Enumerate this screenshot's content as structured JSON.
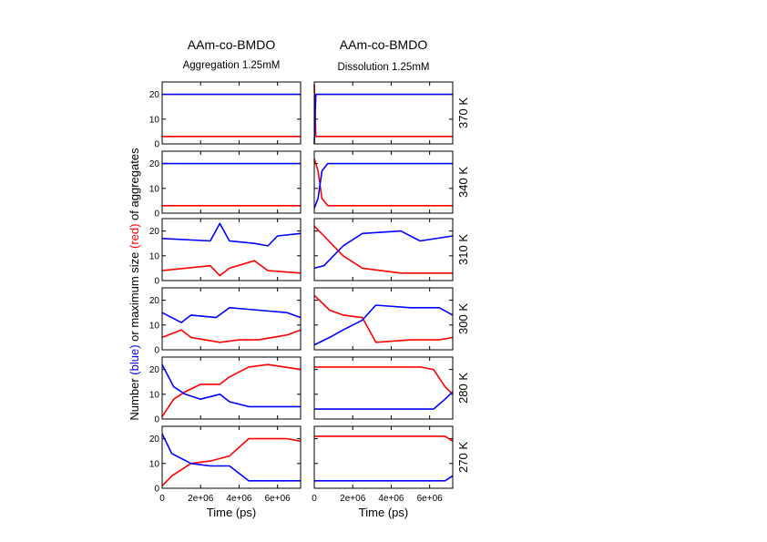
{
  "chart_data": {
    "type": "line",
    "columns": [
      {
        "title": "AAm-co-BMDO",
        "subtitle": "Aggregation 1.25mM"
      },
      {
        "title": "AAm-co-BMDO",
        "subtitle": "Dissolution 1.25mM"
      }
    ],
    "rows": [
      "370 K",
      "340 K",
      "310 K",
      "300 K",
      "280 K",
      "270 K"
    ],
    "xlabel": "Time (ps)",
    "ylabel": {
      "parts": [
        "Number ",
        "(blue)",
        " or maximum size ",
        "(red)",
        " of aggregates"
      ],
      "colors": [
        "#000000",
        "#0000ff",
        "#000000",
        "#ff0000",
        "#000000"
      ]
    },
    "x_ticks": [
      "0",
      "2e+06",
      "4e+06",
      "6e+06"
    ],
    "x_tick_values": [
      0,
      2000000,
      4000000,
      6000000
    ],
    "xlim": [
      0,
      7200000
    ],
    "y_ticks": [
      "0",
      "10",
      "20"
    ],
    "y_tick_values": [
      0,
      10,
      20
    ],
    "ylim": [
      0,
      25
    ],
    "series_colors": {
      "number": "#0000ff",
      "max_size": "#ff0000"
    },
    "panels": [
      {
        "row": "370 K",
        "column": "Aggregation 1.25mM",
        "number": [
          [
            0,
            20
          ],
          [
            7200000,
            20
          ]
        ],
        "max_size": [
          [
            0,
            3
          ],
          [
            7200000,
            3
          ]
        ]
      },
      {
        "row": "370 K",
        "column": "Dissolution 1.25mM",
        "number": [
          [
            0,
            0
          ],
          [
            80000,
            20
          ],
          [
            7200000,
            20
          ]
        ],
        "max_size": [
          [
            0,
            24
          ],
          [
            80000,
            3
          ],
          [
            7200000,
            3
          ]
        ]
      },
      {
        "row": "340 K",
        "column": "Aggregation 1.25mM",
        "number": [
          [
            0,
            20
          ],
          [
            7200000,
            20
          ]
        ],
        "max_size": [
          [
            0,
            3
          ],
          [
            7200000,
            3
          ]
        ]
      },
      {
        "row": "340 K",
        "column": "Dissolution 1.25mM",
        "number": [
          [
            0,
            2
          ],
          [
            200000,
            6
          ],
          [
            400000,
            17
          ],
          [
            700000,
            20
          ],
          [
            7200000,
            20
          ]
        ],
        "max_size": [
          [
            0,
            22
          ],
          [
            200000,
            17
          ],
          [
            400000,
            6
          ],
          [
            700000,
            3
          ],
          [
            7200000,
            3
          ]
        ]
      },
      {
        "row": "310 K",
        "column": "Aggregation 1.25mM",
        "number": [
          [
            0,
            17
          ],
          [
            2500000,
            16
          ],
          [
            3000000,
            23
          ],
          [
            3500000,
            16
          ],
          [
            4800000,
            15
          ],
          [
            5500000,
            14
          ],
          [
            6000000,
            18
          ],
          [
            7200000,
            19
          ]
        ],
        "max_size": [
          [
            0,
            4
          ],
          [
            2500000,
            6
          ],
          [
            3000000,
            2
          ],
          [
            3500000,
            5
          ],
          [
            4800000,
            8
          ],
          [
            5500000,
            4
          ],
          [
            7200000,
            3
          ]
        ]
      },
      {
        "row": "310 K",
        "column": "Dissolution 1.25mM",
        "number": [
          [
            0,
            5
          ],
          [
            500000,
            6
          ],
          [
            1000000,
            10
          ],
          [
            1500000,
            14
          ],
          [
            2500000,
            19
          ],
          [
            4500000,
            20
          ],
          [
            5500000,
            16
          ],
          [
            7200000,
            18
          ]
        ],
        "max_size": [
          [
            0,
            22
          ],
          [
            500000,
            18
          ],
          [
            1000000,
            14
          ],
          [
            1500000,
            10
          ],
          [
            2500000,
            5
          ],
          [
            4500000,
            3
          ],
          [
            7200000,
            3
          ]
        ]
      },
      {
        "row": "300 K",
        "column": "Aggregation 1.25mM",
        "number": [
          [
            0,
            15
          ],
          [
            1000000,
            11
          ],
          [
            1500000,
            14
          ],
          [
            2800000,
            13
          ],
          [
            3500000,
            17
          ],
          [
            5000000,
            16
          ],
          [
            6500000,
            15
          ],
          [
            7200000,
            13
          ]
        ],
        "max_size": [
          [
            0,
            5
          ],
          [
            1000000,
            8
          ],
          [
            1500000,
            5
          ],
          [
            3000000,
            3
          ],
          [
            4000000,
            4
          ],
          [
            5000000,
            4
          ],
          [
            6500000,
            6
          ],
          [
            7200000,
            8
          ]
        ]
      },
      {
        "row": "300 K",
        "column": "Dissolution 1.25mM",
        "number": [
          [
            0,
            2
          ],
          [
            800000,
            5
          ],
          [
            1500000,
            8
          ],
          [
            2500000,
            12
          ],
          [
            3200000,
            18
          ],
          [
            5000000,
            17
          ],
          [
            6500000,
            17
          ],
          [
            7200000,
            14
          ]
        ],
        "max_size": [
          [
            0,
            22
          ],
          [
            800000,
            16
          ],
          [
            1500000,
            14
          ],
          [
            2500000,
            13
          ],
          [
            3200000,
            3
          ],
          [
            5000000,
            4
          ],
          [
            6500000,
            4
          ],
          [
            7200000,
            5
          ]
        ]
      },
      {
        "row": "280 K",
        "column": "Aggregation 1.25mM",
        "number": [
          [
            0,
            22
          ],
          [
            600000,
            13
          ],
          [
            1200000,
            10
          ],
          [
            2000000,
            8
          ],
          [
            3000000,
            10
          ],
          [
            3500000,
            7
          ],
          [
            4500000,
            5
          ],
          [
            7200000,
            5
          ]
        ],
        "max_size": [
          [
            0,
            1
          ],
          [
            600000,
            8
          ],
          [
            1200000,
            11
          ],
          [
            2000000,
            14
          ],
          [
            3000000,
            14
          ],
          [
            3500000,
            17
          ],
          [
            4500000,
            21
          ],
          [
            5500000,
            22
          ],
          [
            7200000,
            20
          ]
        ]
      },
      {
        "row": "280 K",
        "column": "Dissolution 1.25mM",
        "number": [
          [
            0,
            4
          ],
          [
            5500000,
            4
          ],
          [
            6200000,
            4
          ],
          [
            6800000,
            8
          ],
          [
            7200000,
            11
          ]
        ],
        "max_size": [
          [
            0,
            21
          ],
          [
            5500000,
            21
          ],
          [
            6200000,
            20
          ],
          [
            6800000,
            13
          ],
          [
            7200000,
            10
          ]
        ]
      },
      {
        "row": "270 K",
        "column": "Aggregation 1.25mM",
        "number": [
          [
            0,
            22
          ],
          [
            500000,
            14
          ],
          [
            1500000,
            10
          ],
          [
            2500000,
            9
          ],
          [
            3500000,
            9
          ],
          [
            4500000,
            3
          ],
          [
            7200000,
            3
          ]
        ],
        "max_size": [
          [
            0,
            1
          ],
          [
            500000,
            5
          ],
          [
            1500000,
            10
          ],
          [
            2500000,
            11
          ],
          [
            3500000,
            13
          ],
          [
            4500000,
            20
          ],
          [
            6500000,
            20
          ],
          [
            7200000,
            19
          ]
        ]
      },
      {
        "row": "270 K",
        "column": "Dissolution 1.25mM",
        "number": [
          [
            0,
            3
          ],
          [
            6800000,
            3
          ],
          [
            7200000,
            5
          ]
        ],
        "max_size": [
          [
            0,
            21
          ],
          [
            4000000,
            21
          ],
          [
            6800000,
            21
          ],
          [
            7200000,
            19
          ]
        ]
      }
    ]
  }
}
